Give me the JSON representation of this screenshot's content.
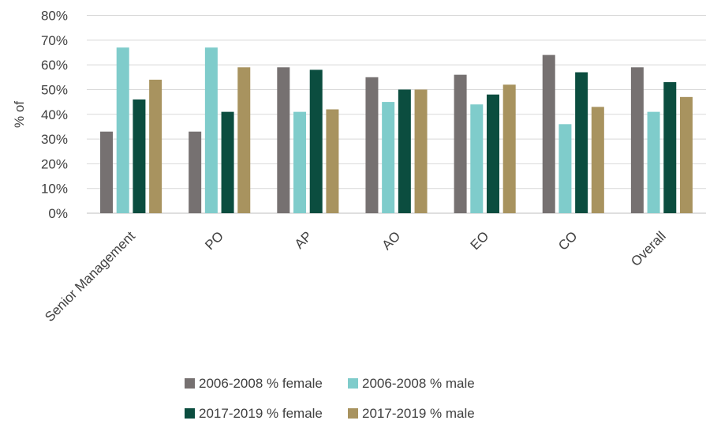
{
  "chart_data": {
    "type": "bar",
    "ylabel": "% of",
    "ylim": [
      0,
      80
    ],
    "y_ticks": [
      "0%",
      "10%",
      "20%",
      "30%",
      "40%",
      "50%",
      "60%",
      "70%",
      "80%"
    ],
    "grid": true,
    "legend_position": "bottom",
    "categories": [
      "Senior Management",
      "PO",
      "AP",
      "AO",
      "EO",
      "CO",
      "Overall"
    ],
    "series": [
      {
        "name": "2006-2008 % female",
        "color": "#767171",
        "values": [
          33,
          33,
          59,
          55,
          56,
          64,
          59
        ]
      },
      {
        "name": "2006-2008 % male",
        "color": "#7fcccb",
        "values": [
          67,
          67,
          41,
          45,
          44,
          36,
          41
        ]
      },
      {
        "name": "2017-2019 % female",
        "color": "#0b4d3f",
        "values": [
          46,
          41,
          58,
          50,
          48,
          57,
          53
        ]
      },
      {
        "name": "2017-2019 % male",
        "color": "#a8935f",
        "values": [
          54,
          59,
          42,
          50,
          52,
          43,
          47
        ]
      }
    ]
  }
}
